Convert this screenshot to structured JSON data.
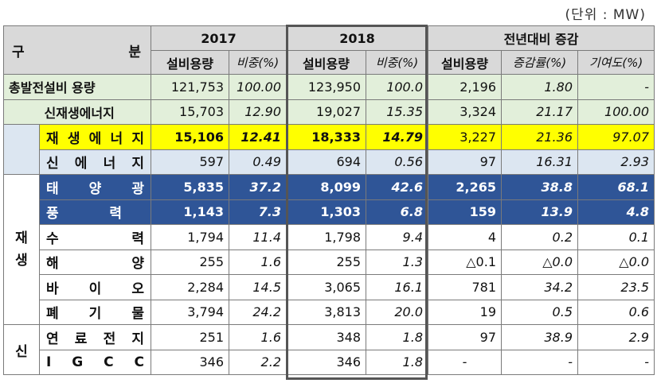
{
  "unit_note": "(단위 : MW)",
  "header": {
    "gu_left": "구",
    "gu_right": "분",
    "year1": "2017",
    "year2": "2018",
    "yoy": "전년대비 증감",
    "cap1": "설비용량",
    "share1": "비중(%)",
    "cap2": "설비용량",
    "share2": "비중(%)",
    "cap3": "설비용량",
    "rate": "증감률(%)",
    "contrib": "기여도(%)"
  },
  "side_labels": {
    "renew_1": "재",
    "renew_2": "생",
    "new": "신"
  },
  "rows": [
    {
      "label": "총발전설비 용량",
      "c1": "121,753",
      "s1": "100.00",
      "c2": "123,950",
      "s2": "100.0",
      "d": "2,196",
      "r": "1.80",
      "k": "-"
    },
    {
      "label": "신재생에너지",
      "c1": "15,703",
      "s1": "12.90",
      "c2": "19,027",
      "s2": "15.35",
      "d": "3,324",
      "r": "21.17",
      "k": "100.00"
    },
    {
      "label_chars": [
        "재",
        "생",
        "에",
        "너",
        "지"
      ],
      "c1": "15,106",
      "s1": "12.41",
      "c2": "18,333",
      "s2": "14.79",
      "d": "3,227",
      "r": "21.36",
      "k": "97.07"
    },
    {
      "label_chars": [
        "신",
        "에",
        "너",
        "지"
      ],
      "c1": "597",
      "s1": "0.49",
      "c2": "694",
      "s2": "0.56",
      "d": "97",
      "r": "16.31",
      "k": "2.93"
    },
    {
      "label_chars": [
        "태",
        "양",
        "광"
      ],
      "c1": "5,835",
      "s1": "37.2",
      "c2": "8,099",
      "s2": "42.6",
      "d": "2,265",
      "r": "38.8",
      "k": "68.1"
    },
    {
      "label_chars": [
        "풍",
        "력"
      ],
      "c1": "1,143",
      "s1": "7.3",
      "c2": "1,303",
      "s2": "6.8",
      "d": "159",
      "r": "13.9",
      "k": "4.8"
    },
    {
      "label_chars": [
        "수",
        "력"
      ],
      "c1": "1,794",
      "s1": "11.4",
      "c2": "1,798",
      "s2": "9.4",
      "d": "4",
      "r": "0.2",
      "k": "0.1"
    },
    {
      "label_chars": [
        "해",
        "양"
      ],
      "c1": "255",
      "s1": "1.6",
      "c2": "255",
      "s2": "1.3",
      "d": "△0.1",
      "r": "△0.0",
      "k": "△0.0"
    },
    {
      "label_chars": [
        "바",
        "이",
        "오"
      ],
      "c1": "2,284",
      "s1": "14.5",
      "c2": "3,065",
      "s2": "16.1",
      "d": "781",
      "r": "34.2",
      "k": "23.5"
    },
    {
      "label_chars": [
        "폐",
        "기",
        "물"
      ],
      "c1": "3,794",
      "s1": "24.2",
      "c2": "3,813",
      "s2": "20.0",
      "d": "19",
      "r": "0.5",
      "k": "0.6"
    },
    {
      "label_chars": [
        "연",
        "료",
        "전",
        "지"
      ],
      "c1": "251",
      "s1": "1.6",
      "c2": "348",
      "s2": "1.8",
      "d": "97",
      "r": "38.9",
      "k": "2.9"
    },
    {
      "label_chars": [
        "I",
        "G",
        "C",
        "C"
      ],
      "c1": "346",
      "s1": "2.2",
      "c2": "346",
      "s2": "1.8",
      "d": "-",
      "r": "-",
      "k": "-"
    }
  ]
}
